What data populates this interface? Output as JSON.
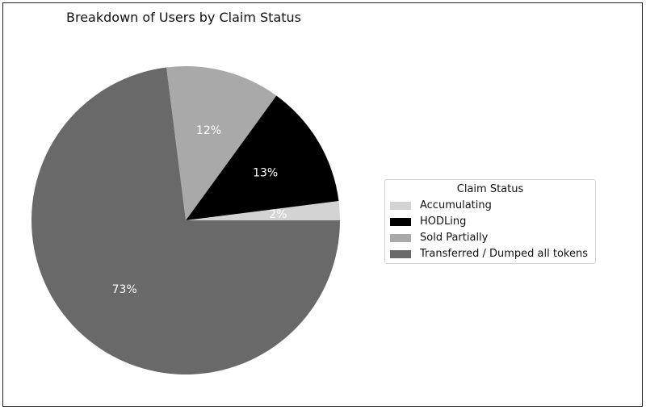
{
  "chart_data": {
    "type": "pie",
    "title": "Breakdown of Users by Claim Status",
    "categories": [
      "Accumulating",
      "HODLing",
      "Sold Partially",
      "Transferred / Dumped all tokens"
    ],
    "values": [
      2,
      13,
      12,
      73
    ],
    "labels": [
      "2%",
      "13%",
      "12%",
      "73%"
    ],
    "colors": [
      "#d3d3d3",
      "#000000",
      "#a9a9a9",
      "#696969"
    ],
    "label_colors": [
      "#ffffff",
      "#ffffff",
      "#ffffff",
      "#ffffff"
    ],
    "start_angle_deg": 0,
    "direction": "counterclockwise",
    "legend": {
      "title": "Claim Status",
      "placement": "right"
    }
  }
}
